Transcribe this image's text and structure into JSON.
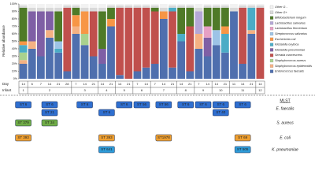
{
  "chart_data": {
    "type": "stacked_bar",
    "ylabel": "Relative abundance",
    "ylim": [
      0,
      100
    ],
    "yticks": [
      {
        "value": 0,
        "label": "0%"
      },
      {
        "value": 10,
        "label": "10%"
      },
      {
        "value": 20,
        "label": "20%"
      },
      {
        "value": 30,
        "label": "30%"
      },
      {
        "value": 40,
        "label": "40%"
      },
      {
        "value": 50,
        "label": "50%"
      },
      {
        "value": 60,
        "label": "60%"
      },
      {
        "value": 70,
        "label": "70%"
      },
      {
        "value": 80,
        "label": "80%"
      },
      {
        "value": 90,
        "label": "90%"
      },
      {
        "value": 100,
        "label": "100%"
      }
    ],
    "row_labels": [
      "Day",
      "Infant"
    ],
    "groups": [
      {
        "infant": "1",
        "days": [
          "14"
        ]
      },
      {
        "infant": "2",
        "days": [
          "6",
          "7",
          "14",
          "21",
          "28"
        ]
      },
      {
        "infant": "3",
        "days": [
          "7",
          "14",
          "21"
        ]
      },
      {
        "infant": "4",
        "days": [
          "14",
          "21"
        ]
      },
      {
        "infant": "5",
        "days": [
          "14",
          "21"
        ]
      },
      {
        "infant": "6",
        "days": [
          "7",
          "14"
        ]
      },
      {
        "infant": "7",
        "days": [
          "7",
          "14",
          "21"
        ]
      },
      {
        "infant": "8",
        "days": [
          "14",
          "21"
        ]
      },
      {
        "infant": "9",
        "days": [
          "7",
          "14"
        ]
      },
      {
        "infant": "10",
        "days": [
          "14",
          "21"
        ]
      },
      {
        "infant": "11",
        "days": [
          "11",
          "14",
          "21"
        ]
      },
      {
        "infant": "12",
        "days": [
          "14"
        ]
      }
    ],
    "series": [
      {
        "name": "Enterococcus faecalis",
        "color": "#4f6fae",
        "values": [
          20,
          40,
          30,
          55,
          35,
          10,
          60,
          45,
          30,
          20,
          70,
          5,
          0,
          10,
          15,
          20,
          80,
          15,
          50,
          10,
          40,
          30,
          45,
          35,
          90,
          20,
          60,
          0
        ]
      },
      {
        "name": "Staphylococcus epidermidis",
        "color": "#f4b183",
        "values": [
          5,
          10,
          0,
          10,
          0,
          0,
          10,
          0,
          0,
          0,
          0,
          0,
          0,
          0,
          0,
          0,
          0,
          0,
          0,
          0,
          20,
          0,
          0,
          0,
          0,
          0,
          5,
          0
        ]
      },
      {
        "name": "Staphylococcus aureus",
        "color": "#a9d18e",
        "values": [
          10,
          0,
          0,
          0,
          0,
          0,
          0,
          15,
          0,
          0,
          0,
          0,
          0,
          0,
          0,
          0,
          0,
          0,
          0,
          0,
          0,
          0,
          0,
          0,
          0,
          0,
          0,
          0
        ]
      },
      {
        "name": "Serratia marcescens",
        "color": "#c0504d",
        "values": [
          0,
          0,
          0,
          0,
          0,
          85,
          0,
          0,
          60,
          0,
          0,
          90,
          95,
          85,
          80,
          70,
          0,
          75,
          0,
          60,
          0,
          0,
          0,
          0,
          0,
          75,
          0,
          95
        ]
      },
      {
        "name": "Klebsiella pneumoniae",
        "color": "#7f5fa5",
        "values": [
          0,
          40,
          60,
          25,
          0,
          0,
          0,
          0,
          0,
          20,
          0,
          0,
          0,
          0,
          0,
          0,
          0,
          0,
          0,
          0,
          0,
          25,
          0,
          0,
          0,
          0,
          0,
          0
        ]
      },
      {
        "name": "Klebsiella oxytoca",
        "color": "#4bacc6",
        "values": [
          10,
          0,
          0,
          0,
          5,
          0,
          0,
          0,
          0,
          0,
          0,
          0,
          0,
          0,
          0,
          0,
          0,
          5,
          10,
          0,
          0,
          0,
          0,
          25,
          0,
          0,
          30,
          0
        ]
      },
      {
        "name": "Escherichia coli",
        "color": "#f79646",
        "values": [
          5,
          0,
          0,
          0,
          0,
          0,
          15,
          30,
          0,
          0,
          10,
          0,
          0,
          0,
          0,
          0,
          10,
          0,
          0,
          0,
          0,
          0,
          0,
          10,
          0,
          0,
          0,
          0
        ]
      },
      {
        "name": "Streptococcus salivarius",
        "color": "#9dc3e6",
        "values": [
          0,
          0,
          0,
          0,
          10,
          0,
          0,
          0,
          0,
          0,
          0,
          0,
          0,
          0,
          0,
          0,
          0,
          0,
          0,
          0,
          0,
          0,
          20,
          0,
          0,
          0,
          0,
          0
        ]
      },
      {
        "name": "Lactobacillus fermentum",
        "color": "#e6a0c4",
        "values": [
          0,
          0,
          0,
          0,
          0,
          0,
          0,
          0,
          0,
          0,
          0,
          0,
          0,
          0,
          0,
          0,
          0,
          0,
          0,
          0,
          0,
          15,
          0,
          0,
          0,
          0,
          0,
          0
        ]
      },
      {
        "name": "Lactobacillus salivarius",
        "color": "#b4a7d6",
        "values": [
          0,
          0,
          0,
          0,
          0,
          0,
          0,
          0,
          0,
          0,
          0,
          0,
          0,
          0,
          0,
          0,
          0,
          0,
          0,
          0,
          30,
          0,
          0,
          0,
          0,
          0,
          0,
          0
        ]
      },
      {
        "name": "Bifidobacterium longum",
        "color": "#4f7a28",
        "values": [
          45,
          0,
          0,
          0,
          40,
          0,
          10,
          0,
          0,
          50,
          15,
          0,
          0,
          0,
          0,
          5,
          0,
          0,
          35,
          25,
          0,
          25,
          30,
          25,
          0,
          0,
          0,
          0
        ]
      },
      {
        "name": "Other G+",
        "color": "#d9d9d9",
        "values": [
          3,
          5,
          5,
          5,
          5,
          3,
          3,
          5,
          5,
          5,
          3,
          3,
          3,
          3,
          3,
          3,
          5,
          3,
          3,
          3,
          5,
          3,
          3,
          3,
          5,
          3,
          3,
          3
        ]
      },
      {
        "name": "Other G -",
        "color": "#f2f2f2",
        "values": [
          2,
          5,
          5,
          5,
          5,
          2,
          2,
          5,
          5,
          5,
          2,
          2,
          2,
          2,
          2,
          2,
          5,
          2,
          2,
          2,
          5,
          2,
          2,
          2,
          5,
          2,
          2,
          2
        ]
      }
    ]
  },
  "mlst": {
    "title": "MLST",
    "rows": [
      {
        "label": "E. faecalis",
        "color": "#2f6fd0",
        "cells": [
          [
            "ST 6"
          ],
          [
            "ST 6",
            "ST 21"
          ],
          [
            "ST 6"
          ],
          [
            "ST 6"
          ],
          [
            "ST 6"
          ],
          [
            "ST 56"
          ],
          [
            "ST 56"
          ],
          [
            "ST 6"
          ],
          [
            "ST 6"
          ],
          [
            "ST 6",
            "ST 40"
          ],
          [
            "ST 6"
          ],
          []
        ]
      },
      {
        "label": "S. aureus",
        "color": "#70ad47",
        "cells": [
          [
            "ST 379"
          ],
          [
            "ST 34"
          ],
          [],
          [],
          [],
          [],
          [],
          [],
          [],
          [],
          [],
          []
        ]
      },
      {
        "label": "E. coli",
        "color": "#f0a030",
        "cells": [
          [
            "ST 393"
          ],
          [],
          [],
          [
            "ST 393"
          ],
          [],
          [],
          [
            "ST1978"
          ],
          [],
          [],
          [],
          [
            "ST 69"
          ],
          []
        ]
      },
      {
        "label": "K. pneumoniae",
        "color": "#2e9bd8",
        "cells": [
          [],
          [],
          [],
          [
            "ST 641"
          ],
          [],
          [],
          [],
          [],
          [],
          [],
          [
            "ST 505"
          ],
          []
        ]
      }
    ]
  }
}
